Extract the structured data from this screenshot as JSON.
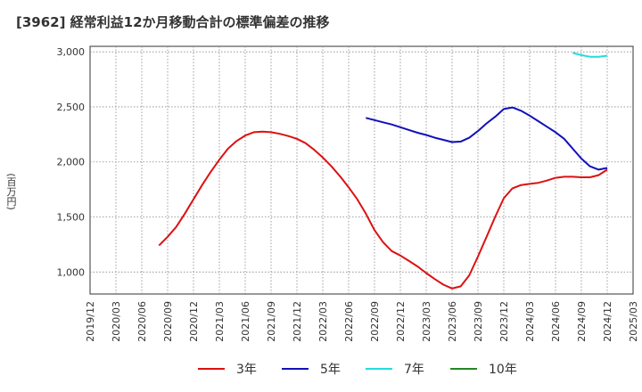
{
  "chart_data": {
    "type": "line",
    "title": "[3962]  経常利益12か月移動合計の標準偏差の推移",
    "ylabel": "(百万円)",
    "xlabel": "",
    "ylim": [
      800,
      3050
    ],
    "yticks": [
      1000,
      1500,
      2000,
      2500,
      3000
    ],
    "ytick_labels": [
      "1,000",
      "1,500",
      "2,000",
      "2,500",
      "3,000"
    ],
    "x_categories": [
      "2019/12",
      "2020/03",
      "2020/06",
      "2020/09",
      "2020/12",
      "2021/03",
      "2021/06",
      "2021/09",
      "2021/12",
      "2022/03",
      "2022/06",
      "2022/09",
      "2022/12",
      "2023/03",
      "2023/06",
      "2023/09",
      "2023/12",
      "2024/03",
      "2024/06",
      "2024/09",
      "2024/12",
      "2025/03"
    ],
    "grid": true,
    "legend_position": "bottom",
    "series": [
      {
        "name": "3年",
        "color": "#dd1111",
        "points": [
          [
            "2020/08",
            1240
          ],
          [
            "2020/09",
            1320
          ],
          [
            "2020/10",
            1410
          ],
          [
            "2020/11",
            1530
          ],
          [
            "2020/12",
            1660
          ],
          [
            "2021/01",
            1790
          ],
          [
            "2021/02",
            1910
          ],
          [
            "2021/03",
            2020
          ],
          [
            "2021/04",
            2120
          ],
          [
            "2021/05",
            2190
          ],
          [
            "2021/06",
            2240
          ],
          [
            "2021/07",
            2270
          ],
          [
            "2021/08",
            2275
          ],
          [
            "2021/09",
            2270
          ],
          [
            "2021/10",
            2255
          ],
          [
            "2021/11",
            2235
          ],
          [
            "2021/12",
            2210
          ],
          [
            "2022/01",
            2170
          ],
          [
            "2022/02",
            2110
          ],
          [
            "2022/03",
            2040
          ],
          [
            "2022/04",
            1960
          ],
          [
            "2022/05",
            1870
          ],
          [
            "2022/06",
            1770
          ],
          [
            "2022/07",
            1660
          ],
          [
            "2022/08",
            1530
          ],
          [
            "2022/09",
            1380
          ],
          [
            "2022/10",
            1270
          ],
          [
            "2022/11",
            1190
          ],
          [
            "2022/12",
            1150
          ],
          [
            "2023/01",
            1100
          ],
          [
            "2023/02",
            1050
          ],
          [
            "2023/03",
            990
          ],
          [
            "2023/04",
            935
          ],
          [
            "2023/05",
            885
          ],
          [
            "2023/06",
            850
          ],
          [
            "2023/07",
            870
          ],
          [
            "2023/08",
            970
          ],
          [
            "2023/09",
            1140
          ],
          [
            "2023/10",
            1320
          ],
          [
            "2023/11",
            1500
          ],
          [
            "2023/12",
            1670
          ],
          [
            "2024/01",
            1760
          ],
          [
            "2024/02",
            1790
          ],
          [
            "2024/03",
            1800
          ],
          [
            "2024/04",
            1810
          ],
          [
            "2024/05",
            1830
          ],
          [
            "2024/06",
            1855
          ],
          [
            "2024/07",
            1865
          ],
          [
            "2024/08",
            1865
          ],
          [
            "2024/09",
            1860
          ],
          [
            "2024/10",
            1860
          ],
          [
            "2024/11",
            1880
          ],
          [
            "2024/12",
            1930
          ]
        ]
      },
      {
        "name": "5年",
        "color": "#1111bb",
        "points": [
          [
            "2022/08",
            2400
          ],
          [
            "2022/09",
            2380
          ],
          [
            "2022/10",
            2360
          ],
          [
            "2022/11",
            2340
          ],
          [
            "2022/12",
            2315
          ],
          [
            "2023/01",
            2290
          ],
          [
            "2023/02",
            2265
          ],
          [
            "2023/03",
            2245
          ],
          [
            "2023/04",
            2220
          ],
          [
            "2023/05",
            2200
          ],
          [
            "2023/06",
            2180
          ],
          [
            "2023/07",
            2185
          ],
          [
            "2023/08",
            2220
          ],
          [
            "2023/09",
            2280
          ],
          [
            "2023/10",
            2350
          ],
          [
            "2023/11",
            2410
          ],
          [
            "2023/12",
            2480
          ],
          [
            "2024/01",
            2495
          ],
          [
            "2024/02",
            2465
          ],
          [
            "2024/03",
            2420
          ],
          [
            "2024/04",
            2370
          ],
          [
            "2024/05",
            2320
          ],
          [
            "2024/06",
            2270
          ],
          [
            "2024/07",
            2210
          ],
          [
            "2024/08",
            2120
          ],
          [
            "2024/09",
            2030
          ],
          [
            "2024/10",
            1960
          ],
          [
            "2024/11",
            1930
          ],
          [
            "2024/12",
            1945
          ]
        ]
      },
      {
        "name": "7年",
        "color": "#22dddd",
        "points": [
          [
            "2024/08",
            2990
          ],
          [
            "2024/09",
            2970
          ],
          [
            "2024/10",
            2955
          ],
          [
            "2024/11",
            2955
          ],
          [
            "2024/12",
            2965
          ]
        ]
      },
      {
        "name": "10年",
        "color": "#228822",
        "points": []
      }
    ]
  }
}
